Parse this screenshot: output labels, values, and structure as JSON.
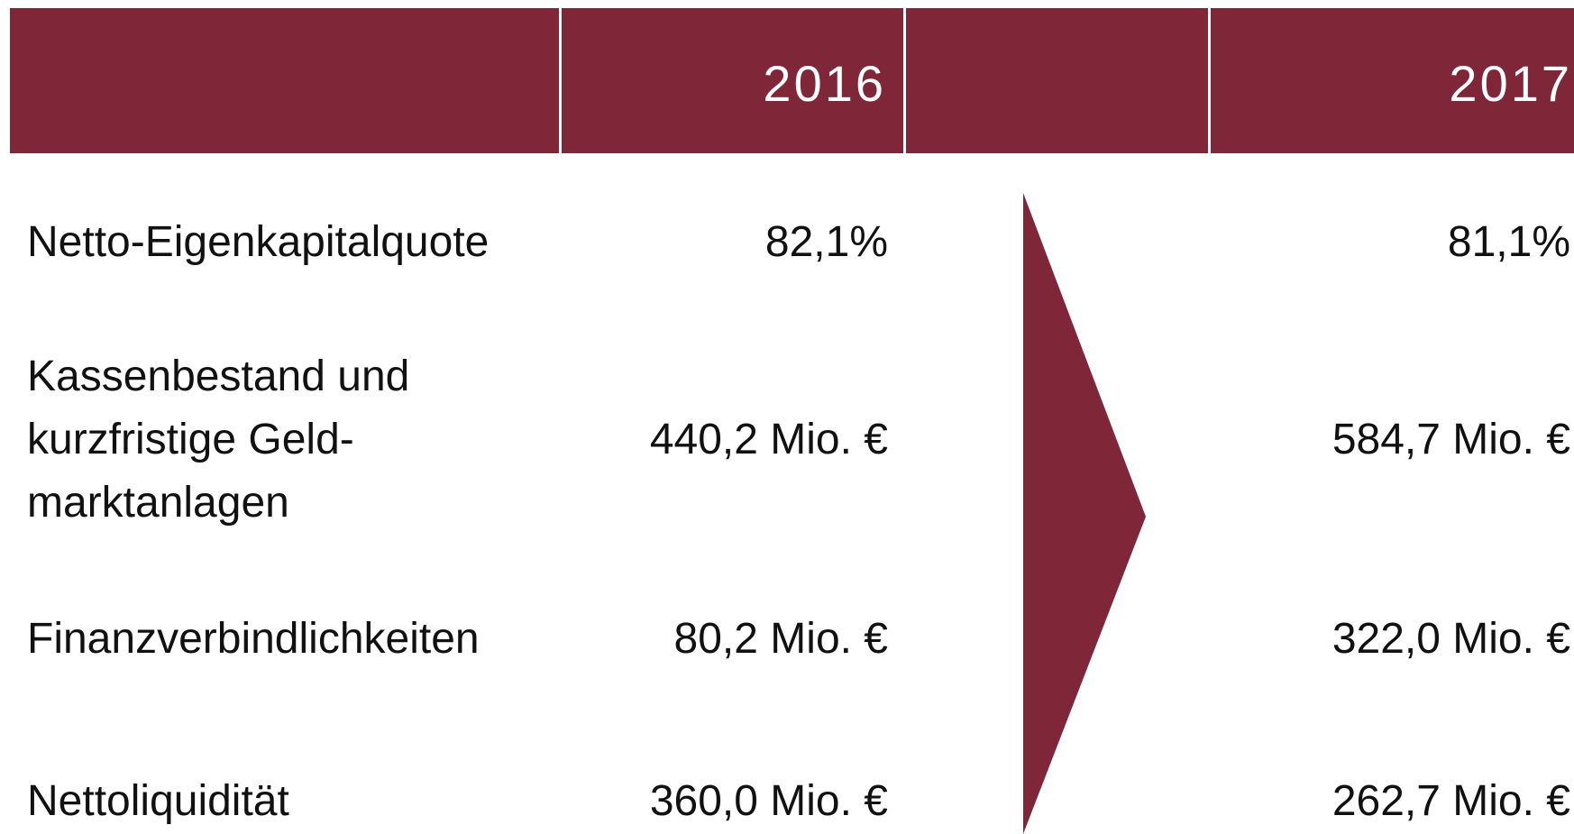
{
  "header": {
    "years": [
      "2016",
      "2017"
    ]
  },
  "table": {
    "rows": [
      {
        "label": [
          "Netto-Eigenkapitalquote"
        ],
        "v2016": "82,1%",
        "v2017": "81,1%"
      },
      {
        "label": [
          "Kassenbestand und",
          "kurzfristige Geld-",
          "marktanlagen"
        ],
        "v2016": "440,2 Mio. €",
        "v2017": "584,7 Mio. €"
      },
      {
        "label": [
          "Finanzverbindlichkeiten"
        ],
        "v2016": "80,2 Mio. €",
        "v2017": "322,0 Mio. €"
      },
      {
        "label": [
          "Nettoliquidität"
        ],
        "v2016": "360,0 Mio. €",
        "v2017": "262,7 Mio. €"
      }
    ]
  }
}
